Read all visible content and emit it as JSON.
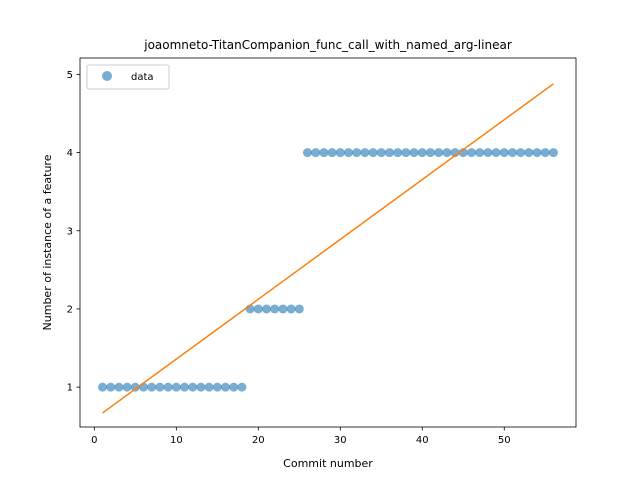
{
  "chart_data": {
    "type": "scatter",
    "title": "joaomneto-TitanCompanion_func_call_with_named_arg-linear",
    "xlabel": "Commit number",
    "ylabel": "Number of instance of a feature",
    "xlim": [
      -1.75,
      58.75
    ],
    "ylim": [
      0.49,
      5.21
    ],
    "xticks": [
      0,
      10,
      20,
      30,
      40,
      50
    ],
    "yticks": [
      1,
      2,
      3,
      4,
      5
    ],
    "grid": false,
    "legend": {
      "placement": "top-left",
      "entries": [
        "data"
      ]
    },
    "series": [
      {
        "name": "data",
        "kind": "scatter",
        "color": "#1f77b4",
        "x": [
          1,
          2,
          3,
          4,
          5,
          6,
          7,
          8,
          9,
          10,
          11,
          12,
          13,
          14,
          15,
          16,
          17,
          18,
          19,
          20,
          21,
          22,
          23,
          24,
          25,
          26,
          27,
          28,
          29,
          30,
          31,
          32,
          33,
          34,
          35,
          36,
          37,
          38,
          39,
          40,
          41,
          42,
          43,
          44,
          45,
          46,
          47,
          48,
          49,
          50,
          51,
          52,
          53,
          54,
          55,
          56
        ],
        "y": [
          1,
          1,
          1,
          1,
          1,
          1,
          1,
          1,
          1,
          1,
          1,
          1,
          1,
          1,
          1,
          1,
          1,
          1,
          2,
          2,
          2,
          2,
          2,
          2,
          2,
          4,
          4,
          4,
          4,
          4,
          4,
          4,
          4,
          4,
          4,
          4,
          4,
          4,
          4,
          4,
          4,
          4,
          4,
          4,
          4,
          4,
          4,
          4,
          4,
          4,
          4,
          4,
          4,
          4,
          4,
          4
        ]
      },
      {
        "kind": "line",
        "color": "#ff7f0e",
        "x": [
          1,
          56
        ],
        "y": [
          0.67,
          4.88
        ]
      }
    ]
  }
}
